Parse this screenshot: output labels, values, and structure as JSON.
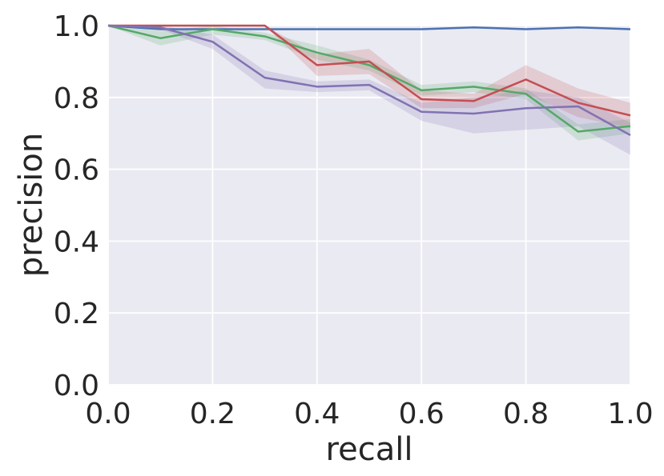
{
  "chart_data": {
    "type": "line",
    "title": "",
    "xlabel": "recall",
    "ylabel": "precision",
    "xlim": [
      0.0,
      1.0
    ],
    "ylim": [
      0.0,
      1.0
    ],
    "grid": true,
    "background": "#EAEAF2",
    "x_ticks": [
      "0.0",
      "0.2",
      "0.4",
      "0.6",
      "0.8",
      "1.0"
    ],
    "y_ticks": [
      "0.0",
      "0.2",
      "0.4",
      "0.6",
      "0.8",
      "1.0"
    ],
    "x": [
      0.0,
      0.1,
      0.2,
      0.3,
      0.4,
      0.5,
      0.6,
      0.7,
      0.8,
      0.9,
      1.0
    ],
    "series": [
      {
        "color": "#4C72B0",
        "values": [
          1.0,
          0.99,
          0.99,
          0.99,
          0.99,
          0.99,
          0.99,
          0.995,
          0.99,
          0.995,
          0.99
        ],
        "lower": [
          1.0,
          0.99,
          0.99,
          0.99,
          0.99,
          0.99,
          0.99,
          0.995,
          0.99,
          0.995,
          0.99
        ],
        "upper": [
          1.0,
          0.99,
          0.99,
          0.99,
          0.99,
          0.99,
          0.99,
          0.995,
          0.99,
          0.995,
          0.99
        ]
      },
      {
        "color": "#55A868",
        "values": [
          1.0,
          0.965,
          0.99,
          0.97,
          0.925,
          0.89,
          0.82,
          0.83,
          0.81,
          0.705,
          0.72
        ],
        "lower": [
          1.0,
          0.945,
          0.975,
          0.96,
          0.905,
          0.875,
          0.805,
          0.815,
          0.795,
          0.68,
          0.7
        ],
        "upper": [
          1.0,
          0.985,
          1.0,
          0.98,
          0.945,
          0.905,
          0.835,
          0.845,
          0.825,
          0.725,
          0.74
        ]
      },
      {
        "color": "#C44E52",
        "values": [
          1.0,
          1.0,
          1.0,
          1.0,
          0.89,
          0.9,
          0.795,
          0.79,
          0.85,
          0.785,
          0.75
        ],
        "lower": [
          1.0,
          1.0,
          1.0,
          1.0,
          0.86,
          0.865,
          0.77,
          0.77,
          0.81,
          0.745,
          0.715
        ],
        "upper": [
          1.0,
          1.0,
          1.0,
          1.0,
          0.92,
          0.935,
          0.82,
          0.81,
          0.89,
          0.825,
          0.785
        ]
      },
      {
        "color": "#8172B2",
        "values": [
          1.0,
          0.995,
          0.955,
          0.855,
          0.83,
          0.835,
          0.76,
          0.755,
          0.77,
          0.775,
          0.695
        ],
        "lower": [
          1.0,
          0.99,
          0.935,
          0.825,
          0.815,
          0.82,
          0.735,
          0.7,
          0.71,
          0.72,
          0.64
        ],
        "upper": [
          1.0,
          1.0,
          0.975,
          0.875,
          0.845,
          0.85,
          0.785,
          0.8,
          0.82,
          0.8,
          0.73
        ]
      }
    ]
  }
}
